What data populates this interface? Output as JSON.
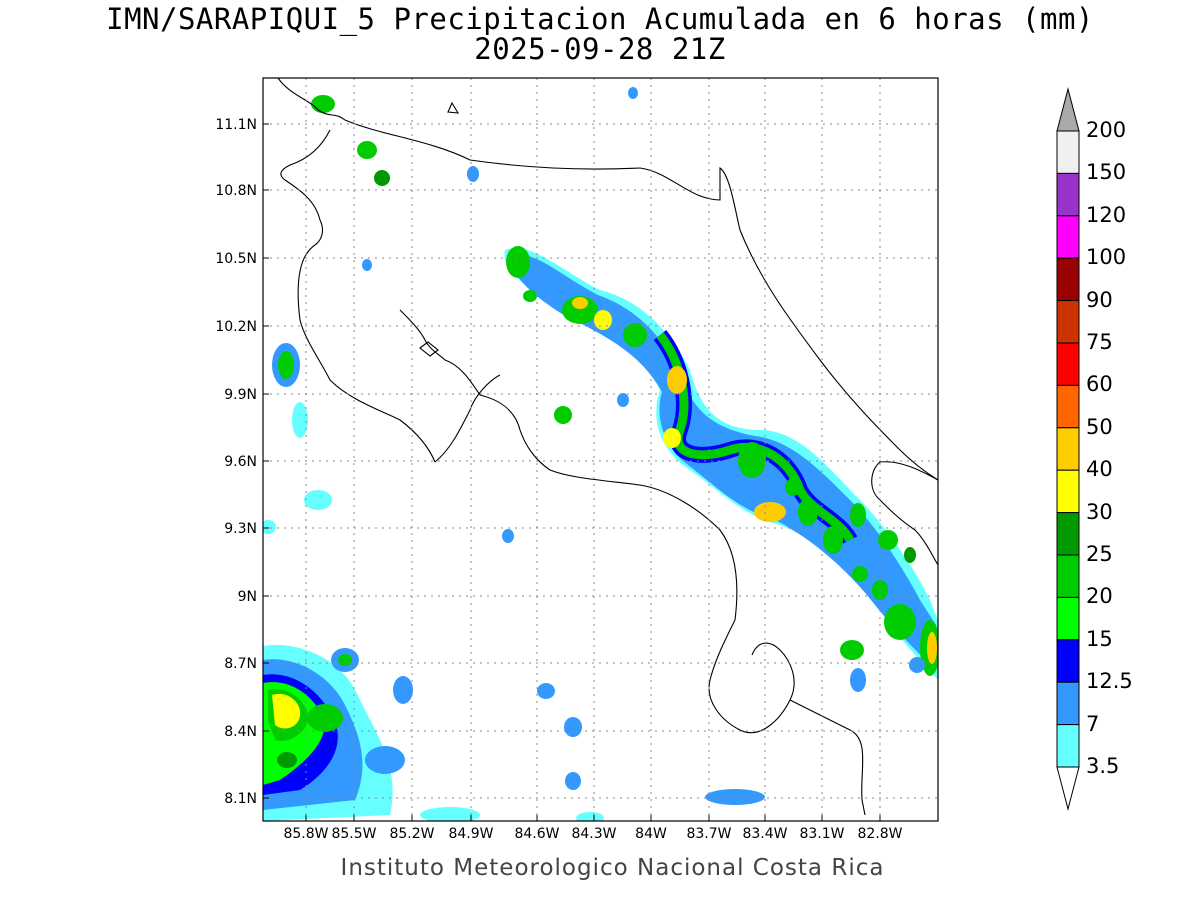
{
  "title": {
    "line1": "IMN/SARAPIQUI_5 Precipitacion Acumulada en 6 horas (mm)",
    "line2": "2025-09-28 21Z"
  },
  "map": {
    "lon_ticks": [
      "85.8W",
      "85.5W",
      "85.2W",
      "84.9W",
      "84.6W",
      "84.3W",
      "84W",
      "83.7W",
      "83.4W",
      "83.1W",
      "82.8W"
    ],
    "lat_ticks": [
      "11.1N",
      "10.8N",
      "10.5N",
      "10.2N",
      "9.9N",
      "9.6N",
      "9.3N",
      "9N",
      "8.7N",
      "8.4N",
      "8.1N"
    ],
    "lon_range": [
      -86.05,
      -82.55
    ],
    "lat_range": [
      11.2,
      8.0
    ]
  },
  "colorbar": {
    "labels": [
      "200",
      "150",
      "120",
      "100",
      "90",
      "75",
      "60",
      "50",
      "40",
      "30",
      "25",
      "20",
      "15",
      "12.5",
      "7",
      "3.5"
    ],
    "colors": [
      "#f0f0f0",
      "#9933cc",
      "#ff00ff",
      "#990000",
      "#cc3300",
      "#ff0000",
      "#ff6600",
      "#ffcc00",
      "#ffff00",
      "#009900",
      "#00cc00",
      "#00ff00",
      "#0000ff",
      "#3399ff",
      "#66ffff"
    ],
    "over_color": "#aaaaaa",
    "under_color": "#ffffff"
  },
  "credit": "Instituto Meteorologico Nacional Costa Rica"
}
